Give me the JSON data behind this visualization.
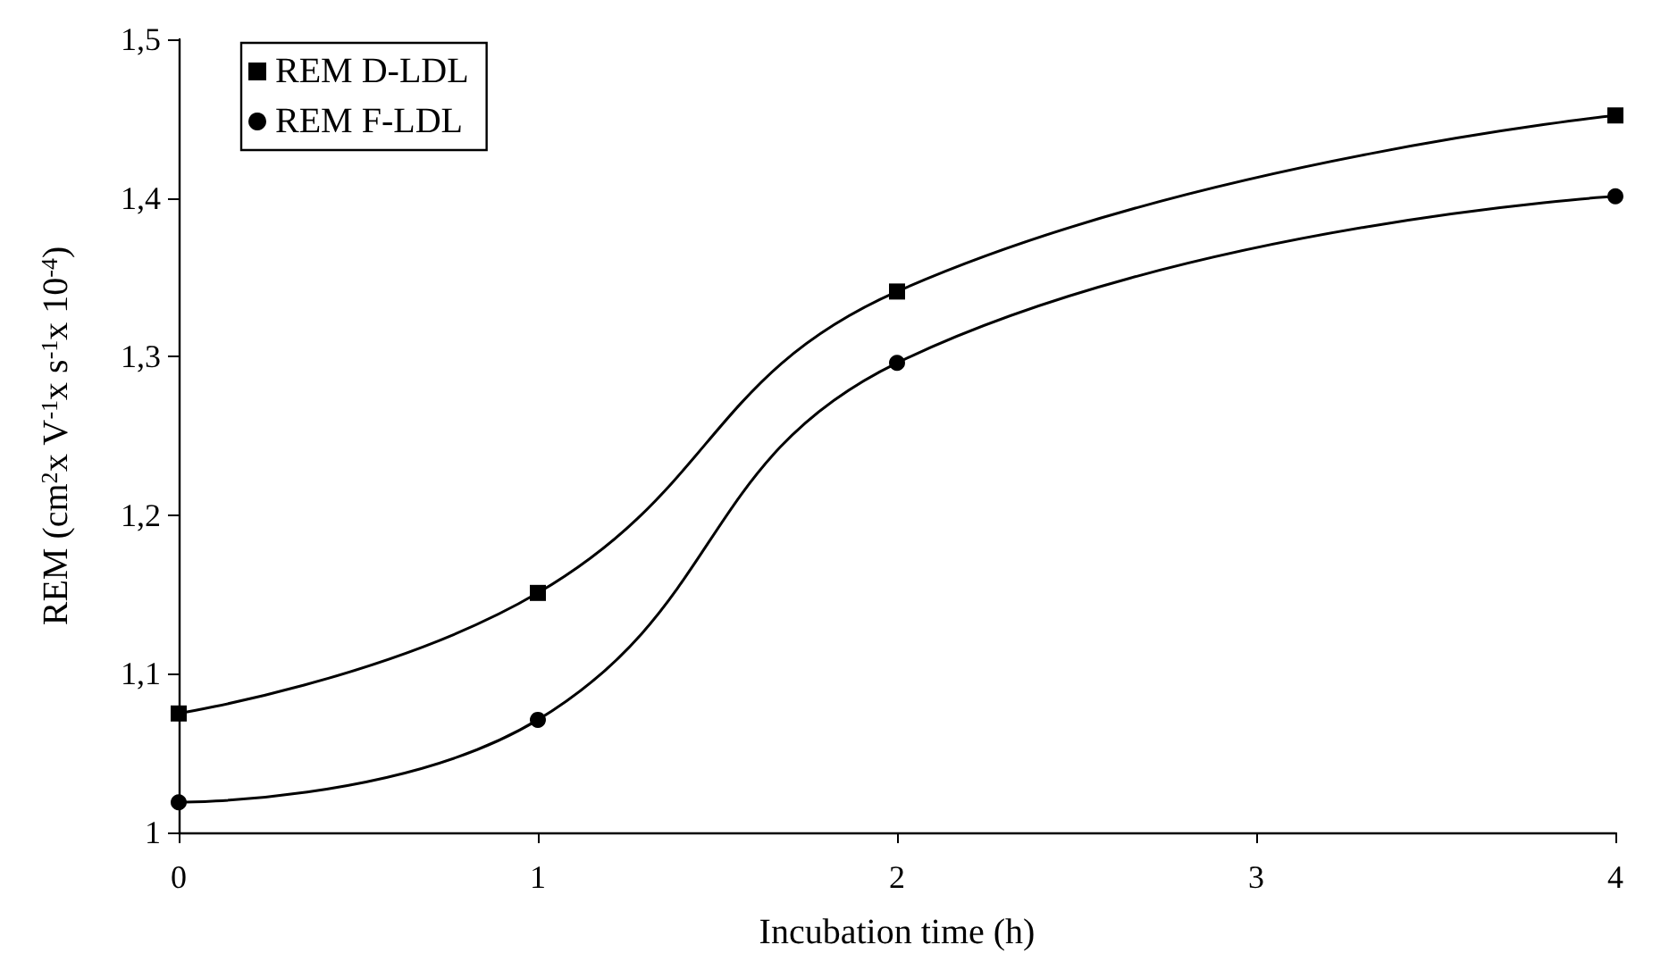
{
  "chart_data": {
    "type": "line",
    "xlabel": "Incubation time (h)",
    "ylabel": "REM (cm$^{2}$x V$^{-1}$x s$^{-1}$x 10$^{-4}$)",
    "x": [
      0,
      1,
      2,
      4
    ],
    "series": [
      {
        "name": "REM D-LDL",
        "color": "#000000",
        "marker": "square",
        "values": [
          1.075,
          1.151,
          1.341,
          1.452
        ]
      },
      {
        "name": "REM F-LDL",
        "color": "#000000",
        "marker": "circle",
        "values": [
          1.019,
          1.071,
          1.296,
          1.401
        ]
      }
    ],
    "xlim": [
      0,
      4
    ],
    "xticks": [
      0,
      1,
      2,
      3,
      4
    ],
    "ylim": [
      1,
      1.5
    ],
    "yticks": [
      {
        "value": 1,
        "label": "1"
      },
      {
        "value": 1.1,
        "label": "1,1"
      },
      {
        "value": 1.2,
        "label": "1,2"
      },
      {
        "value": 1.3,
        "label": "1,3"
      },
      {
        "value": 1.4,
        "label": "1,4"
      },
      {
        "value": 1.5,
        "label": "1,5"
      }
    ],
    "grid": false,
    "legend": "top left",
    "line_style": "solid"
  }
}
